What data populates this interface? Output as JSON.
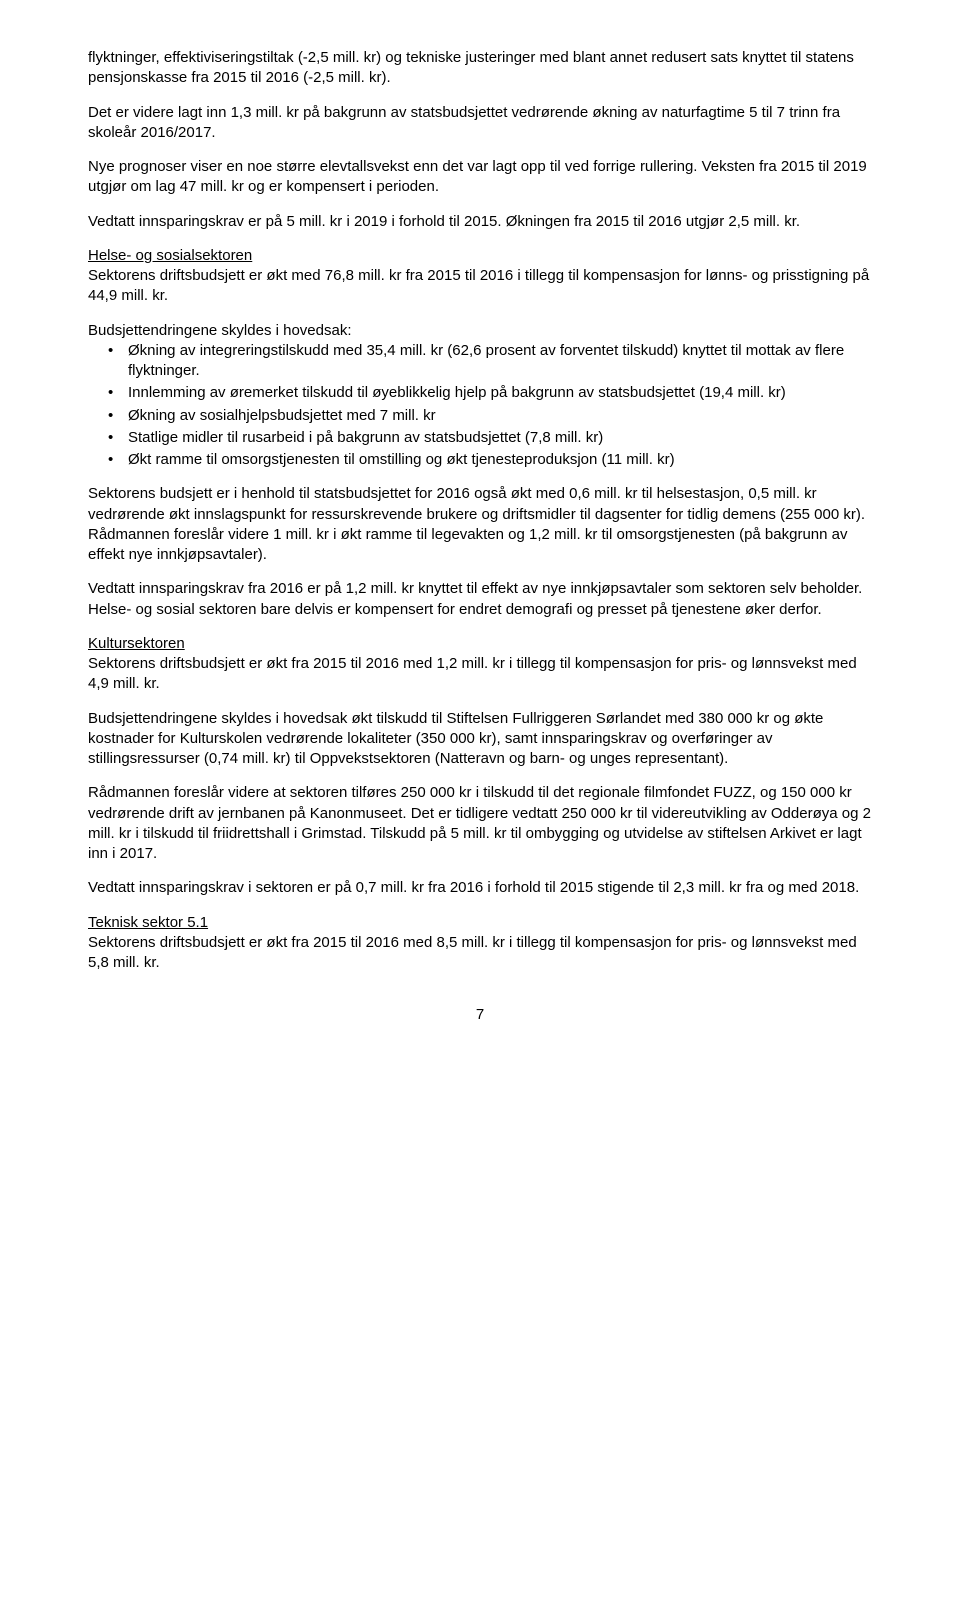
{
  "para1": "flyktninger, effektiviseringstiltak (-2,5 mill. kr) og tekniske justeringer med blant annet redusert sats knyttet til statens pensjonskasse fra 2015 til 2016 (-2,5 mill. kr).",
  "para2": "Det er videre lagt inn 1,3 mill. kr på bakgrunn av statsbudsjettet vedrørende økning av naturfagtime 5 til 7 trinn fra skoleår 2016/2017.",
  "para3": "Nye prognoser viser en noe større elevtallsvekst enn det var lagt opp til ved forrige rullering. Veksten fra 2015 til 2019 utgjør om lag 47 mill. kr og er kompensert i perioden.",
  "para4": "Vedtatt innsparingskrav er på 5 mill. kr i 2019 i forhold til 2015. Økningen fra 2015 til 2016 utgjør 2,5 mill. kr.",
  "helse_heading": "Helse- og sosialsektoren",
  "helse_para1": "Sektorens driftsbudsjett er økt med 76,8 mill. kr fra 2015 til 2016 i tillegg til kompensasjon for lønns- og prisstigning på 44,9 mill. kr.",
  "budget_intro": "Budsjettendringene skyldes i hovedsak:",
  "bullet1": "Økning av integreringstilskudd med 35,4 mill. kr (62,6 prosent av forventet tilskudd) knyttet til mottak av flere flyktninger.",
  "bullet2": "Innlemming av øremerket tilskudd til øyeblikkelig hjelp på bakgrunn av statsbudsjettet (19,4 mill. kr)",
  "bullet3": "Økning av sosialhjelpsbudsjettet med 7 mill. kr",
  "bullet4": "Statlige midler til rusarbeid i på bakgrunn av statsbudsjettet (7,8 mill. kr)",
  "bullet5": "Økt ramme til omsorgstjenesten til omstilling og økt tjenesteproduksjon (11 mill. kr)",
  "helse_para2": "Sektorens budsjett er i henhold til statsbudsjettet for 2016 også økt med 0,6 mill. kr til helsestasjon, 0,5 mill. kr vedrørende økt innslagspunkt for ressurskrevende brukere og driftsmidler til dagsenter for tidlig demens (255 000 kr). Rådmannen foreslår videre 1 mill. kr i økt ramme til legevakten og 1,2 mill. kr til omsorgstjenesten (på bakgrunn av effekt nye innkjøpsavtaler).",
  "helse_para3": "Vedtatt innsparingskrav fra 2016 er på 1,2 mill. kr knyttet til effekt av nye innkjøpsavtaler som sektoren selv beholder. Helse- og sosial sektoren bare delvis er kompensert for endret demografi og presset på tjenestene øker derfor.",
  "kultur_heading": "Kultursektoren",
  "kultur_para1": "Sektorens driftsbudsjett er økt fra 2015 til 2016 med 1,2 mill. kr i tillegg til kompensasjon for pris- og lønnsvekst med 4,9 mill. kr.",
  "kultur_para2": "Budsjettendringene skyldes i hovedsak økt tilskudd til Stiftelsen Fullriggeren Sørlandet med 380 000 kr og økte kostnader for Kulturskolen vedrørende lokaliteter (350 000 kr), samt innsparingskrav og overføringer av stillingsressurser (0,74 mill. kr) til Oppvekstsektoren (Natteravn og barn- og unges representant).",
  "kultur_para3": "Rådmannen foreslår videre at sektoren tilføres 250 000 kr i tilskudd til det regionale filmfondet FUZZ, og 150 000 kr vedrørende drift av jernbanen på Kanonmuseet. Det er tidligere vedtatt 250 000 kr til videreutvikling av Odderøya og 2 mill. kr i tilskudd til friidrettshall i Grimstad. Tilskudd på 5 mill. kr til ombygging og utvidelse av stiftelsen Arkivet er lagt inn i 2017.",
  "kultur_para4": "Vedtatt innsparingskrav i sektoren er på 0,7 mill. kr fra 2016 i forhold til 2015 stigende til 2,3 mill. kr fra og med 2018.",
  "teknisk_heading": "Teknisk sektor 5.1",
  "teknisk_para1": "Sektorens driftsbudsjett er økt fra 2015 til 2016 med 8,5 mill. kr i tillegg til kompensasjon for pris- og lønnsvekst med 5,8 mill. kr.",
  "page_number": "7"
}
